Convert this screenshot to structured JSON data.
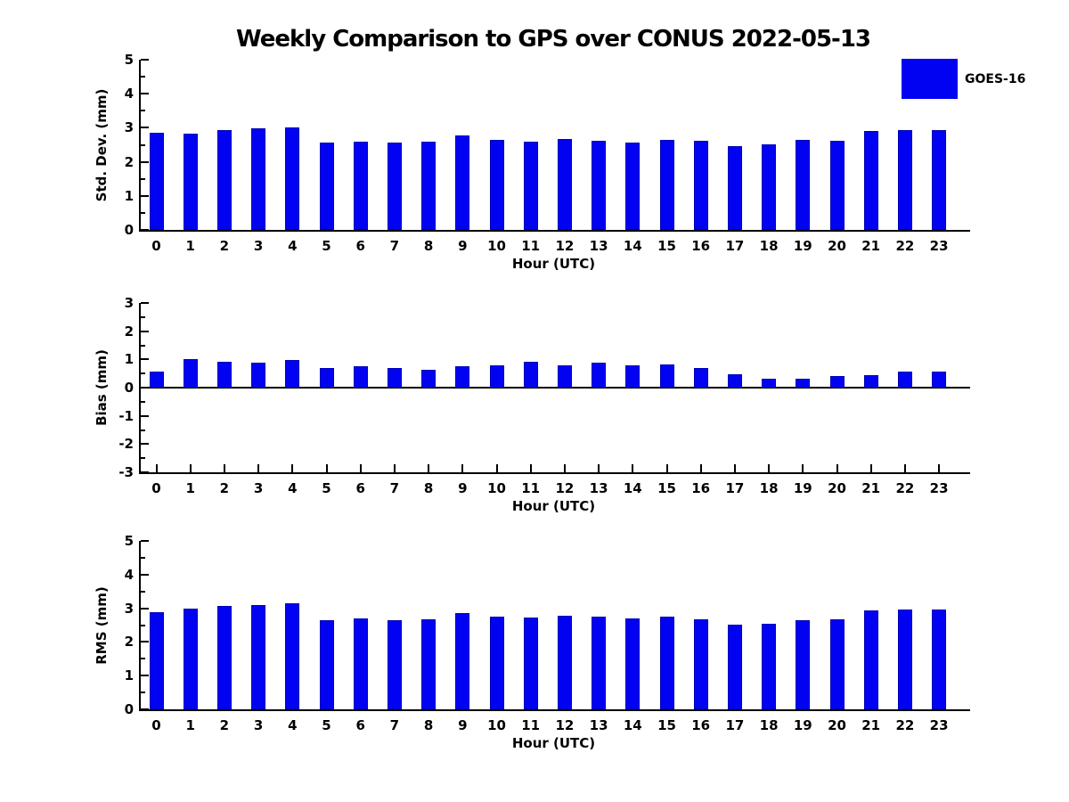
{
  "title": "Weekly Comparison to GPS over CONUS 2022-05-13",
  "legend": {
    "label": "GOES-16",
    "color": "#0202f2",
    "position": "top-right"
  },
  "colors": {
    "bar_fill": "#0202f2",
    "bar_edge": "#0000b8",
    "axis": "#000000",
    "background": "#ffffff"
  },
  "chart_data": [
    {
      "type": "bar",
      "name": "std-dev-by-hour",
      "series_name": "GOES-16",
      "ylabel": "Std. Dev. (mm)",
      "xlabel": "Hour (UTC)",
      "categories": [
        "0",
        "1",
        "2",
        "3",
        "4",
        "5",
        "6",
        "7",
        "8",
        "9",
        "10",
        "11",
        "12",
        "13",
        "14",
        "15",
        "16",
        "17",
        "18",
        "19",
        "20",
        "21",
        "22",
        "23"
      ],
      "values": [
        2.85,
        2.82,
        2.93,
        2.98,
        3.02,
        2.56,
        2.6,
        2.56,
        2.59,
        2.78,
        2.65,
        2.59,
        2.67,
        2.63,
        2.57,
        2.65,
        2.61,
        2.47,
        2.52,
        2.64,
        2.63,
        2.91,
        2.94,
        2.92
      ],
      "ylim": [
        0,
        5
      ],
      "yticks": [
        0,
        1,
        2,
        3,
        4,
        5
      ],
      "minor_tick_step": 0.5,
      "grid": false
    },
    {
      "type": "bar",
      "name": "bias-by-hour",
      "series_name": "GOES-16",
      "ylabel": "Bias (mm)",
      "xlabel": "Hour (UTC)",
      "categories": [
        "0",
        "1",
        "2",
        "3",
        "4",
        "5",
        "6",
        "7",
        "8",
        "9",
        "10",
        "11",
        "12",
        "13",
        "14",
        "15",
        "16",
        "17",
        "18",
        "19",
        "20",
        "21",
        "22",
        "23"
      ],
      "values": [
        0.57,
        1.0,
        0.92,
        0.88,
        0.97,
        0.7,
        0.76,
        0.7,
        0.63,
        0.76,
        0.8,
        0.91,
        0.78,
        0.89,
        0.78,
        0.83,
        0.7,
        0.47,
        0.32,
        0.31,
        0.41,
        0.44,
        0.58,
        0.57
      ],
      "ylim": [
        -3,
        3
      ],
      "yticks": [
        -3,
        -2,
        -1,
        0,
        1,
        2,
        3
      ],
      "minor_tick_step": 0.5,
      "zero_line": true,
      "grid": false
    },
    {
      "type": "bar",
      "name": "rms-by-hour",
      "series_name": "GOES-16",
      "ylabel": "RMS (mm)",
      "xlabel": "Hour (UTC)",
      "categories": [
        "0",
        "1",
        "2",
        "3",
        "4",
        "5",
        "6",
        "7",
        "8",
        "9",
        "10",
        "11",
        "12",
        "13",
        "14",
        "15",
        "16",
        "17",
        "18",
        "19",
        "20",
        "21",
        "22",
        "23"
      ],
      "values": [
        2.88,
        2.98,
        3.06,
        3.09,
        3.14,
        2.65,
        2.7,
        2.65,
        2.67,
        2.85,
        2.76,
        2.72,
        2.77,
        2.75,
        2.69,
        2.75,
        2.68,
        2.52,
        2.55,
        2.64,
        2.68,
        2.94,
        2.96,
        2.96
      ],
      "ylim": [
        0,
        5
      ],
      "yticks": [
        0,
        1,
        2,
        3,
        4,
        5
      ],
      "minor_tick_step": 0.5,
      "grid": false
    }
  ]
}
